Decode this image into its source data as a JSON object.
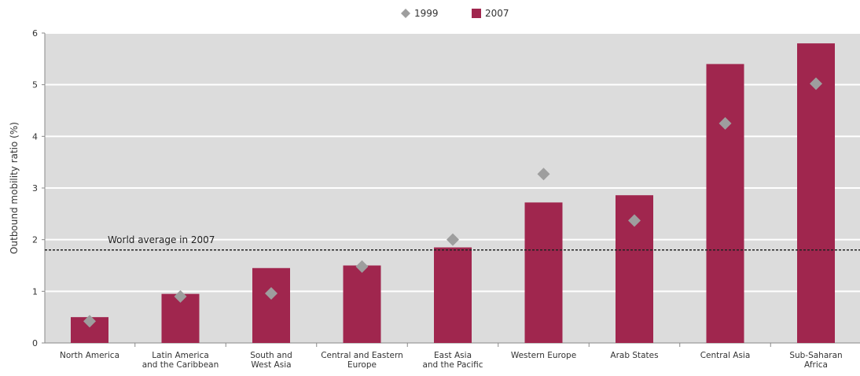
{
  "chart_data": {
    "type": "bar",
    "categories": [
      [
        "North America"
      ],
      [
        "Latin America",
        "and the Caribbean"
      ],
      [
        "South and",
        "West Asia"
      ],
      [
        "Central and Eastern",
        "Europe"
      ],
      [
        "East Asia",
        "and the Pacific"
      ],
      [
        "Western Europe"
      ],
      [
        "Arab States"
      ],
      [
        "Central Asia"
      ],
      [
        "Sub-Saharan",
        "Africa"
      ]
    ],
    "series": [
      {
        "name": "2007",
        "kind": "bar",
        "color": "#a0264e",
        "values": [
          0.5,
          0.95,
          1.45,
          1.5,
          1.85,
          2.72,
          2.86,
          5.4,
          5.8
        ]
      },
      {
        "name": "1999",
        "kind": "marker",
        "color": "#9e9e9e",
        "values": [
          0.42,
          0.9,
          0.96,
          1.48,
          2.0,
          3.27,
          2.37,
          4.25,
          5.02
        ]
      }
    ],
    "ylabel": "Outbound mobility ratio (%)",
    "xlabel": "",
    "ylim": [
      0,
      6
    ],
    "yticks": [
      0,
      1,
      2,
      3,
      4,
      5,
      6
    ],
    "grid": true,
    "legend_position": "top-center",
    "reference_line": {
      "value": 1.8,
      "label": "World average in 2007"
    },
    "plot_background": "#dcdcdc"
  }
}
